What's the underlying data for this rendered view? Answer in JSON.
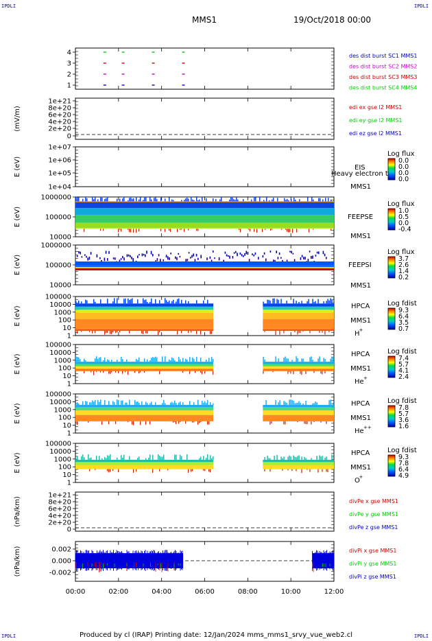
{
  "corners": {
    "top_left": "IPDLI",
    "top_right": "IPDLI",
    "bottom_left": "IPDLI",
    "bottom_right": "IPDLI"
  },
  "header": {
    "spacecraft": "MMS1",
    "date": "19/Oct/2018 00:00"
  },
  "footer": "Produced by cl (IRAP)   Printing date: 12/Jan/2024   mms_mms1_srvy_vue_web2.cl",
  "colors": {
    "sc1": "#0000cc",
    "sc2": "#cc00cc",
    "sc3": "#cc0000",
    "sc4": "#00cc00",
    "x": "#cc0000",
    "y": "#00cc00",
    "z": "#0000cc"
  },
  "chart_data": [
    {
      "type": "scatter",
      "name": "burst_availability",
      "yticks": [
        "4",
        "3",
        "2",
        "1"
      ],
      "legend": [
        {
          "label": "des dist burst SC1 MMS1",
          "color": "#0000cc"
        },
        {
          "label": "des dist burst SC2 MMS2",
          "color": "#cc00cc"
        },
        {
          "label": "des dist burst SC3 MMS3",
          "color": "#cc0000"
        },
        {
          "label": "des dist burst SC4 MMS4",
          "color": "#00cc00"
        }
      ],
      "bursts": [
        {
          "level": 4,
          "times": [
            1.3,
            2.15,
            3.55,
            4.95
          ]
        },
        {
          "level": 3,
          "times": [
            1.3,
            2.15,
            3.55,
            4.95
          ]
        },
        {
          "level": 2,
          "times": [
            1.3,
            2.15,
            3.55,
            4.95
          ]
        },
        {
          "level": 1,
          "times": [
            1.3,
            2.15,
            3.55,
            4.95
          ]
        }
      ]
    },
    {
      "type": "line",
      "name": "edi_E",
      "ylabel": "(mV/m)",
      "yticks": [
        "1e+21",
        "8e+20",
        "6e+20",
        "4e+20",
        "2e+20",
        "0"
      ],
      "legend": [
        {
          "label": "edi ex gse l2 MMS1",
          "color": "#cc0000"
        },
        {
          "label": "edi ey gse l2 MMS1",
          "color": "#00cc00"
        },
        {
          "label": "edi ez gse l2 MMS1",
          "color": "#0000cc"
        }
      ]
    },
    {
      "type": "heatmap",
      "name": "EIS",
      "ylabel": "E (eV)",
      "yticks": [
        "1e+07",
        "1e+06",
        "1e+05",
        "1e+04"
      ],
      "labels": [
        "EIS",
        "MMS1"
      ],
      "overlay_text": "Heavy electron ta",
      "colorbar": {
        "title": "Log flux",
        "ticks": [
          "0.0",
          "0.0",
          "0.0",
          "0.0"
        ]
      }
    },
    {
      "type": "heatmap",
      "name": "FEEPS_electron",
      "ylabel": "E (eV)",
      "yticks": [
        "1000000",
        "100000",
        "10000"
      ],
      "labels": [
        "FEEPSE",
        "MMS1"
      ],
      "colorbar": {
        "title": "Log flux",
        "ticks": [
          "1.0",
          "0.5",
          "0.0",
          "-0.4"
        ]
      }
    },
    {
      "type": "heatmap",
      "name": "FEEPS_ion",
      "ylabel": "E (eV)",
      "yticks": [
        "1000000",
        "100000",
        "10000"
      ],
      "labels": [
        "FEEPSI",
        "MMS1"
      ],
      "colorbar": {
        "title": "Log flux",
        "ticks": [
          "3.7",
          "2.6",
          "1.4",
          "0.2"
        ]
      }
    },
    {
      "type": "heatmap",
      "name": "HPCA_H",
      "ylabel": "E (eV)",
      "yticks": [
        "100000",
        "10000",
        "1000",
        "100",
        "10",
        "1"
      ],
      "labels": [
        "HPCA",
        "MMS1",
        "H",
        "+"
      ],
      "colorbar": {
        "title": "Log fdist",
        "ticks": [
          "9.3",
          "6.4",
          "3.5",
          "0.7"
        ]
      },
      "coverage": [
        [
          0,
          6.4
        ],
        [
          8.7,
          12
        ]
      ]
    },
    {
      "type": "heatmap",
      "name": "HPCA_He",
      "ylabel": "E (eV)",
      "yticks": [
        "100000",
        "10000",
        "1000",
        "100",
        "10",
        "1"
      ],
      "labels": [
        "HPCA",
        "MMS1",
        "He",
        "+"
      ],
      "colorbar": {
        "title": "Log fdist",
        "ticks": [
          "7.4",
          "5.7",
          "4.1",
          "2.4"
        ]
      },
      "coverage": [
        [
          0,
          6.4
        ],
        [
          8.7,
          12
        ]
      ]
    },
    {
      "type": "heatmap",
      "name": "HPCA_He2",
      "ylabel": "E (eV)",
      "yticks": [
        "100000",
        "10000",
        "1000",
        "100",
        "10",
        "1"
      ],
      "labels": [
        "HPCA",
        "MMS1",
        "He",
        "++"
      ],
      "colorbar": {
        "title": "Log fdist",
        "ticks": [
          "7.8",
          "5.7",
          "3.6",
          "1.6"
        ]
      },
      "coverage": [
        [
          0,
          6.4
        ],
        [
          8.7,
          12
        ]
      ]
    },
    {
      "type": "heatmap",
      "name": "HPCA_O",
      "ylabel": "E (eV)",
      "yticks": [
        "100000",
        "10000",
        "1000",
        "100",
        "10",
        "1"
      ],
      "labels": [
        "HPCA",
        "MMS1",
        "O",
        "+"
      ],
      "colorbar": {
        "title": "Log fdist",
        "ticks": [
          "9.3",
          "7.8",
          "6.4",
          "4.9"
        ]
      },
      "coverage": [
        [
          0,
          6.4
        ],
        [
          8.7,
          12
        ]
      ]
    },
    {
      "type": "line",
      "name": "divPe",
      "ylabel": "(nPa/km)",
      "yticks": [
        "1e+21",
        "8e+20",
        "6e+20",
        "4e+20",
        "2e+20",
        "0"
      ],
      "legend": [
        {
          "label": "divPe x gse MMS1",
          "color": "#cc0000"
        },
        {
          "label": "divPe y gse MMS1",
          "color": "#00cc00"
        },
        {
          "label": "divPe z gse MMS1",
          "color": "#0000cc"
        }
      ]
    },
    {
      "type": "line",
      "name": "divPi",
      "ylabel": "(nPa/km)",
      "yticks": [
        "0.002",
        "0.000",
        "-0.002"
      ],
      "legend": [
        {
          "label": "divPi x gse MMS1",
          "color": "#cc0000"
        },
        {
          "label": "divPi y gse MMS1",
          "color": "#00cc00"
        },
        {
          "label": "divPi z gse MMS1",
          "color": "#0000cc"
        }
      ],
      "coverage": [
        [
          0,
          5.0
        ],
        [
          11.0,
          12
        ]
      ]
    }
  ],
  "xaxis": {
    "range": [
      0,
      12
    ],
    "ticks": [
      "00:00",
      "02:00",
      "04:00",
      "06:00",
      "08:00",
      "10:00",
      "12:00"
    ]
  }
}
